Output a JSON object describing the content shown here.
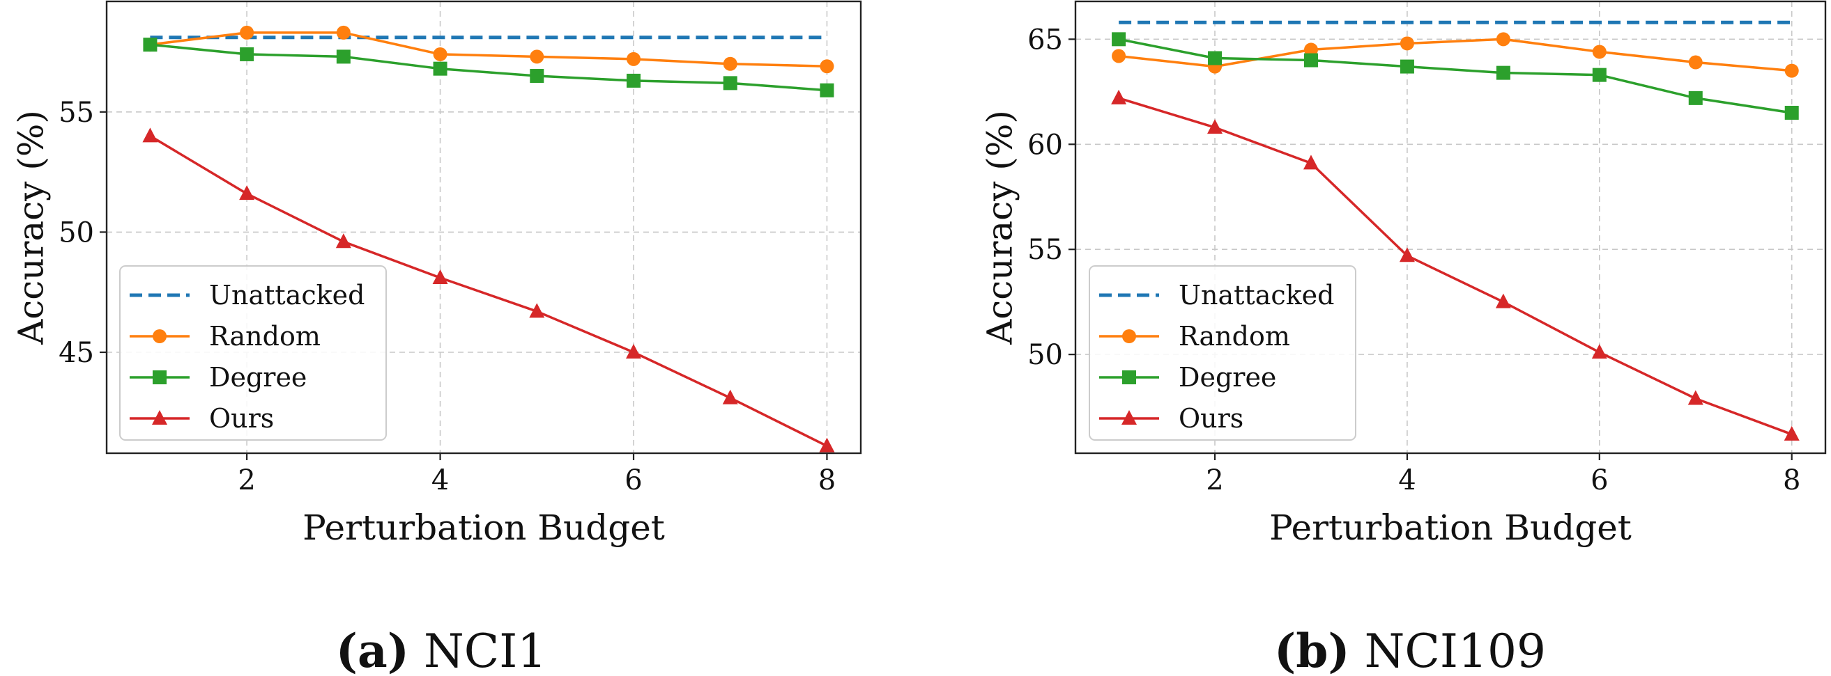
{
  "chart_data": [
    {
      "type": "line",
      "caption_label": "(a)",
      "caption_title": "NCI1",
      "xlabel": "Perturbation Budget",
      "ylabel": "Accuracy (%)",
      "xlim": [
        0.55,
        8.35
      ],
      "ylim": [
        40.8,
        59.6
      ],
      "xticks": [
        2,
        4,
        6,
        8
      ],
      "yticks": [
        45,
        50,
        55
      ],
      "grid": true,
      "legend_position": "lower-left",
      "x": [
        1,
        2,
        3,
        4,
        5,
        6,
        7,
        8
      ],
      "series": [
        {
          "name": "Unattacked",
          "color": "#1f77b4",
          "style": "dashed",
          "marker": "none",
          "values": [
            58.1,
            58.1,
            58.1,
            58.1,
            58.1,
            58.1,
            58.1,
            58.1
          ]
        },
        {
          "name": "Random",
          "color": "#ff7f0e",
          "style": "solid",
          "marker": "circle",
          "values": [
            57.8,
            58.3,
            58.3,
            57.4,
            57.3,
            57.2,
            57.0,
            56.9
          ]
        },
        {
          "name": "Degree",
          "color": "#2ca02c",
          "style": "solid",
          "marker": "square",
          "values": [
            57.8,
            57.4,
            57.3,
            56.8,
            56.5,
            56.3,
            56.2,
            55.9
          ]
        },
        {
          "name": "Ours",
          "color": "#d62728",
          "style": "solid",
          "marker": "triangle",
          "values": [
            54.0,
            51.6,
            49.6,
            48.1,
            46.7,
            45.0,
            43.1,
            41.1
          ]
        }
      ]
    },
    {
      "type": "line",
      "caption_label": "(b)",
      "caption_title": "NCI109",
      "xlabel": "Perturbation Budget",
      "ylabel": "Accuracy (%)",
      "xlim": [
        0.55,
        8.35
      ],
      "ylim": [
        45.3,
        66.8
      ],
      "xticks": [
        2,
        4,
        6,
        8
      ],
      "yticks": [
        50,
        55,
        60,
        65
      ],
      "grid": true,
      "legend_position": "lower-left",
      "x": [
        1,
        2,
        3,
        4,
        5,
        6,
        7,
        8
      ],
      "series": [
        {
          "name": "Unattacked",
          "color": "#1f77b4",
          "style": "dashed",
          "marker": "none",
          "values": [
            65.8,
            65.8,
            65.8,
            65.8,
            65.8,
            65.8,
            65.8,
            65.8
          ]
        },
        {
          "name": "Random",
          "color": "#ff7f0e",
          "style": "solid",
          "marker": "circle",
          "values": [
            64.2,
            63.7,
            64.5,
            64.8,
            65.0,
            64.4,
            63.9,
            63.5
          ]
        },
        {
          "name": "Degree",
          "color": "#2ca02c",
          "style": "solid",
          "marker": "square",
          "values": [
            65.0,
            64.1,
            64.0,
            63.7,
            63.4,
            63.3,
            62.2,
            61.5
          ]
        },
        {
          "name": "Ours",
          "color": "#d62728",
          "style": "solid",
          "marker": "triangle",
          "values": [
            62.2,
            60.8,
            59.1,
            54.7,
            52.5,
            50.1,
            47.9,
            46.2
          ]
        }
      ]
    }
  ]
}
